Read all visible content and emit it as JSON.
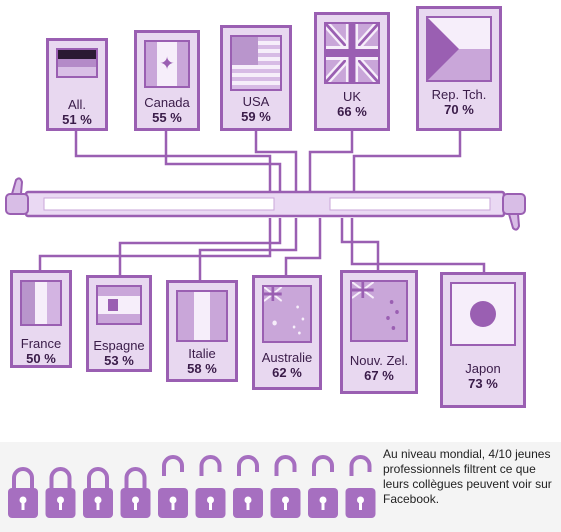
{
  "countries": [
    {
      "label": "All.",
      "pct": "51 %",
      "flag": "germany-flag"
    },
    {
      "label": "Canada",
      "pct": "55 %",
      "flag": "canada-flag"
    },
    {
      "label": "USA",
      "pct": "59 %",
      "flag": "usa-flag"
    },
    {
      "label": "UK",
      "pct": "66 %",
      "flag": "uk-flag"
    },
    {
      "label": "Rep. Tch.",
      "pct": "70 %",
      "flag": "czech-flag"
    },
    {
      "label": "France",
      "pct": "50 %",
      "flag": "france-flag"
    },
    {
      "label": "Espagne",
      "pct": "53 %",
      "flag": "spain-flag"
    },
    {
      "label": "Italie",
      "pct": "58 %",
      "flag": "italy-flag"
    },
    {
      "label": "Australie",
      "pct": "62 %",
      "flag": "australia-flag"
    },
    {
      "label": "Nouv. Zel.",
      "pct": "67 %",
      "flag": "new-zealand-flag"
    },
    {
      "label": "Japon",
      "pct": "73 %",
      "flag": "japan-flag"
    }
  ],
  "global_stat": {
    "text": "Au niveau mondial, 4/10 jeunes professionnels filtrent ce que leurs collègues peuvent voir sur Facebook.",
    "locked": 4,
    "unlocked": 6
  },
  "colors": {
    "accent": "#9a5fb2",
    "fill": "#e8d8f0",
    "dark": "#3a1c49"
  },
  "icons": {
    "left": "thumbs-up-icon",
    "right": "thumbs-down-icon",
    "lock": "lock-icon"
  }
}
